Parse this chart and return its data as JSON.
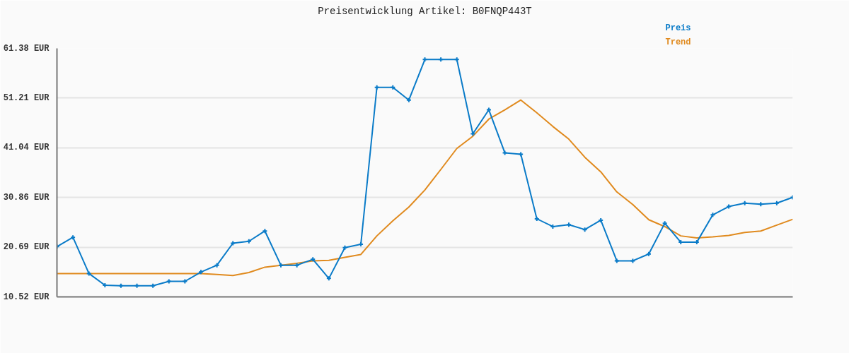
{
  "chart_data": {
    "type": "line",
    "title": "Preisentwicklung Artikel: B0FNQP443T",
    "categories": [
      null,
      null,
      null,
      null,
      null,
      null,
      null,
      null,
      null,
      null,
      null,
      null,
      null,
      null,
      null,
      null,
      null,
      null,
      null,
      null,
      null,
      null,
      null,
      null,
      null,
      null,
      null,
      null,
      null,
      null,
      null,
      null,
      null,
      null,
      null,
      null,
      null,
      null,
      null,
      null,
      null,
      null,
      null,
      null,
      null,
      null,
      null
    ],
    "series": [
      {
        "name": "Preis",
        "color": "#0a7bc8",
        "marker": "cross",
        "values": [
          20.8,
          22.7,
          15.3,
          12.9,
          12.8,
          12.8,
          12.8,
          13.7,
          13.7,
          15.6,
          17.0,
          21.5,
          21.9,
          24.0,
          17.0,
          17.0,
          18.2,
          14.3,
          20.6,
          21.3,
          53.4,
          53.4,
          50.8,
          59.1,
          59.1,
          59.1,
          43.9,
          48.8,
          40.0,
          39.7,
          26.5,
          24.9,
          25.3,
          24.3,
          26.2,
          17.9,
          17.9,
          19.3,
          25.6,
          21.7,
          21.7,
          27.3,
          29.0,
          29.7,
          29.5,
          29.7,
          30.9
        ]
      },
      {
        "name": "Trend",
        "color": "#e08a1e",
        "marker": "none",
        "values": [
          15.3,
          15.3,
          15.3,
          15.3,
          15.3,
          15.3,
          15.3,
          15.3,
          15.3,
          15.3,
          15.1,
          14.9,
          15.5,
          16.6,
          17.0,
          17.4,
          17.9,
          18.0,
          18.6,
          19.2,
          23.0,
          26.1,
          28.9,
          32.4,
          36.6,
          40.9,
          43.4,
          46.9,
          48.8,
          50.8,
          48.2,
          45.4,
          42.8,
          39.1,
          36.1,
          32.0,
          29.4,
          26.3,
          24.9,
          23.0,
          22.6,
          22.8,
          23.1,
          23.7,
          24.0,
          25.2,
          26.4
        ]
      }
    ],
    "ylim": [
      10.52,
      61.38
    ],
    "yticks": [
      {
        "value": 10.52,
        "label": "10.52 EUR"
      },
      {
        "value": 20.69,
        "label": "20.69 EUR"
      },
      {
        "value": 30.86,
        "label": "30.86 EUR"
      },
      {
        "value": 41.04,
        "label": "41.04 EUR"
      },
      {
        "value": 51.21,
        "label": "51.21 EUR"
      },
      {
        "value": 61.38,
        "label": "61.38 EUR"
      }
    ],
    "grid": "y",
    "tick_labels": "y",
    "line_style": "solid"
  }
}
